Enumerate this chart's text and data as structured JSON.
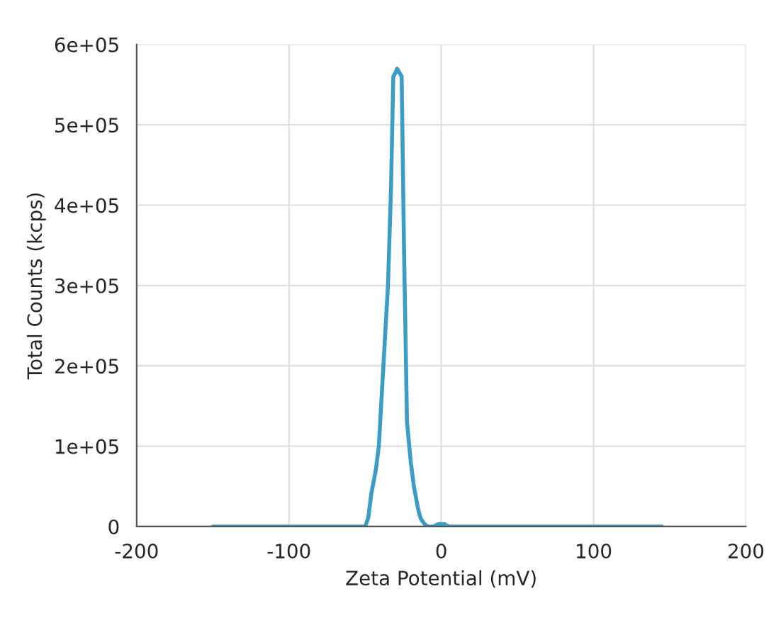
{
  "chart_data": {
    "type": "line",
    "xlabel": "Zeta Potential (mV)",
    "ylabel": "Total Counts (kcps)",
    "series": [
      {
        "color": "#3a9cc7",
        "x": [
          -150,
          -100,
          -60,
          -50,
          -48,
          -46,
          -43,
          -41,
          -38,
          -35,
          -33,
          -31.5,
          -30,
          -29,
          -27.5,
          -26,
          -24.5,
          -22.5,
          -20,
          -18,
          -15,
          -13.5,
          -11,
          -9,
          -5,
          -2,
          0,
          2,
          5,
          50,
          100,
          145
        ],
        "values": [
          0,
          0,
          0,
          0,
          10000,
          40000,
          70000,
          100000,
          200000,
          300000,
          420000,
          560000,
          565000,
          570000,
          565000,
          560000,
          350000,
          130000,
          80000,
          50000,
          20000,
          10000,
          3000,
          0,
          0,
          3000,
          3000,
          3000,
          0,
          0,
          0,
          0
        ]
      }
    ],
    "xlim": [
      -200,
      200
    ],
    "xticks": [
      -200,
      -100,
      0,
      100,
      200
    ],
    "ylim": [
      0,
      600000
    ],
    "yticks": [
      {
        "value": 0,
        "label": "0"
      },
      {
        "value": 100000,
        "label": "1e+05"
      },
      {
        "value": 200000,
        "label": "2e+05"
      },
      {
        "value": 300000,
        "label": "3e+05"
      },
      {
        "value": 400000,
        "label": "4e+05"
      },
      {
        "value": 500000,
        "label": "5e+05"
      },
      {
        "value": 600000,
        "label": "6e+05"
      }
    ],
    "grid": true,
    "legend": false
  }
}
